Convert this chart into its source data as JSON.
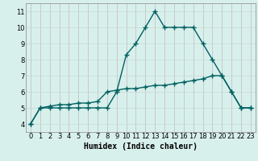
{
  "x": [
    0,
    1,
    2,
    3,
    4,
    5,
    6,
    7,
    8,
    9,
    10,
    11,
    12,
    13,
    14,
    15,
    16,
    17,
    18,
    19,
    20,
    21,
    22,
    23
  ],
  "line1": [
    4,
    5,
    5,
    5,
    5,
    5,
    5,
    5,
    5,
    6,
    8.3,
    9,
    10,
    11,
    10,
    10,
    10,
    10,
    9,
    8,
    7,
    6,
    5,
    5
  ],
  "line2": [
    4,
    5,
    5.1,
    5.2,
    5.2,
    5.3,
    5.3,
    5.4,
    6,
    6.1,
    6.2,
    6.2,
    6.3,
    6.4,
    6.4,
    6.5,
    6.6,
    6.7,
    6.8,
    7,
    7,
    6,
    5,
    5
  ],
  "bg_color": "#d8f0ec",
  "grid_color_v": "#c0b8c0",
  "grid_color_h": "#c8d8d0",
  "line_color": "#006060",
  "marker": "+",
  "marker_size": 4,
  "line_width": 1.0,
  "xlabel": "Humidex (Indice chaleur)",
  "xlabel_fontsize": 7,
  "xlim": [
    -0.5,
    23.5
  ],
  "ylim": [
    3.5,
    11.5
  ],
  "yticks": [
    4,
    5,
    6,
    7,
    8,
    9,
    10,
    11
  ],
  "xticks": [
    0,
    1,
    2,
    3,
    4,
    5,
    6,
    7,
    8,
    9,
    10,
    11,
    12,
    13,
    14,
    15,
    16,
    17,
    18,
    19,
    20,
    21,
    22,
    23
  ],
  "tick_fontsize": 6
}
